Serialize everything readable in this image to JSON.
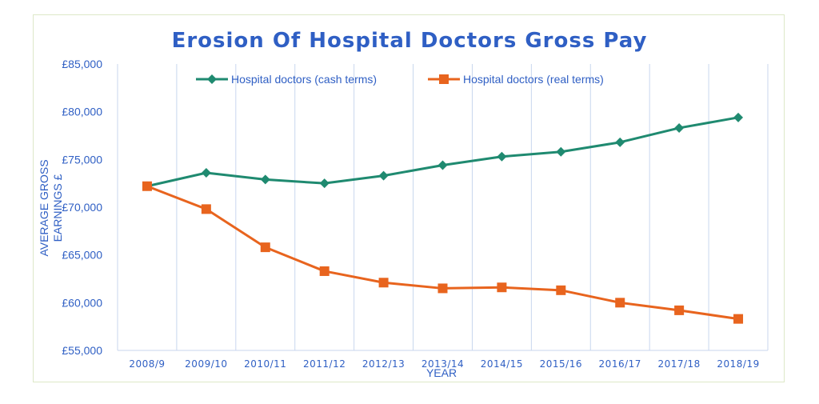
{
  "chart_data": {
    "type": "line",
    "title": "Erosion Of Hospital Doctors Gross Pay",
    "xlabel": "YEAR",
    "ylabel": "AVERAGE GROSS EARNINGS £",
    "categories": [
      "2008/9",
      "2009/10",
      "2010/11",
      "2011/12",
      "2012/13",
      "2013/14",
      "2014/15",
      "2015/16",
      "2016/17",
      "2017/18",
      "2018/19"
    ],
    "ylim": [
      55000,
      85000
    ],
    "yticks": [
      55000,
      60000,
      65000,
      70000,
      75000,
      80000,
      85000
    ],
    "ytick_labels": [
      "£55,000",
      "£60,000",
      "£65,000",
      "£70,000",
      "£75,000",
      "£80,000",
      "£85,000"
    ],
    "grid": "vertical",
    "legend_position": "top",
    "series": [
      {
        "name": "Hospital doctors (cash terms)",
        "color": "#1f8a70",
        "marker": "diamond",
        "values": [
          72200,
          73600,
          72900,
          72500,
          73300,
          74400,
          75300,
          75800,
          76800,
          78300,
          79400
        ]
      },
      {
        "name": "Hospital doctors (real terms)",
        "color": "#e8641e",
        "marker": "square",
        "values": [
          72200,
          69800,
          65800,
          63300,
          62100,
          61500,
          61600,
          61300,
          60000,
          59200,
          58300
        ]
      }
    ]
  }
}
